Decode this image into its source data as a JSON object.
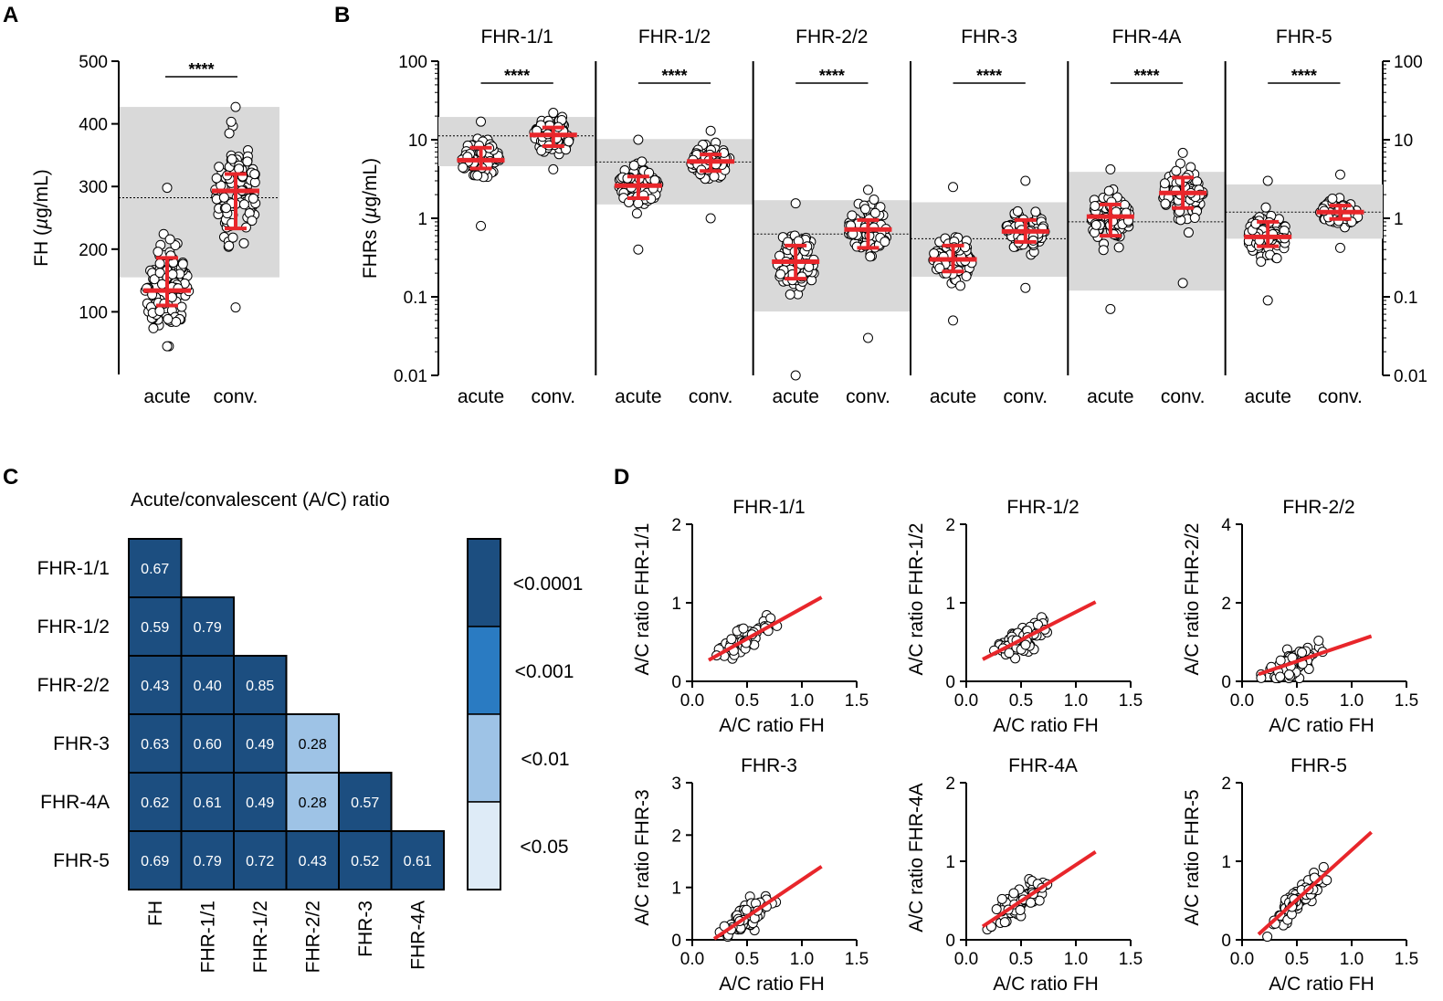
{
  "panel_letters": {
    "A": "A",
    "B": "B",
    "C": "C",
    "D": "D"
  },
  "colors": {
    "median": "#e8262b",
    "ref_band": "#d9d9d9",
    "heat_0001": "#1c4e80",
    "heat_001": "#2a7bc2",
    "heat_01": "#9ec3e6",
    "heat_05": "#deebf7"
  },
  "chart_data": [
    {
      "id": "A",
      "type": "scatter",
      "subtype": "dot-plot",
      "ylabel_prefix": "FH (",
      "ylabel_mu": "µ",
      "ylabel_suffix": "g/mL)",
      "ylim": [
        0,
        500
      ],
      "yticks": [
        100,
        200,
        300,
        400,
        500
      ],
      "ytick_labels": [
        "100",
        "200",
        "300",
        "400",
        "500"
      ],
      "categories": [
        "acute",
        "conv."
      ],
      "reference_range": [
        155,
        427
      ],
      "reference_median": 282,
      "significance": "****",
      "groups": [
        {
          "name": "acute",
          "median": 134,
          "q1": 110,
          "q3": 186,
          "min": 45,
          "max": 298,
          "n": 95
        },
        {
          "name": "conv.",
          "median": 293,
          "q1": 233,
          "q3": 320,
          "min": 107,
          "max": 427,
          "n": 95
        }
      ]
    },
    {
      "id": "B",
      "type": "scatter",
      "subtype": "dot-plot",
      "scale": "log",
      "ylabel_prefix": "FHRs (",
      "ylabel_mu": "µ",
      "ylabel_suffix": "g/mL)",
      "ylim": [
        0.01,
        100
      ],
      "yticks": [
        0.01,
        0.1,
        1,
        10,
        100
      ],
      "ytick_labels": [
        "0.01",
        "0.1",
        "1",
        "10",
        "100"
      ],
      "significance": "****",
      "panels": [
        {
          "title": "FHR-1/1",
          "reference_range": [
            4.6,
            19.5
          ],
          "reference_median": 11.2,
          "groups": [
            {
              "name": "acute",
              "median": 5.5,
              "q1": 4.3,
              "q3": 7.9,
              "min": 0.8,
              "max": 17
            },
            {
              "name": "conv.",
              "median": 11.5,
              "q1": 8.3,
              "q3": 14.3,
              "min": 4.2,
              "max": 22
            }
          ]
        },
        {
          "title": "FHR-1/2",
          "reference_range": [
            1.5,
            10.2
          ],
          "reference_median": 5.2,
          "groups": [
            {
              "name": "acute",
              "median": 2.6,
              "q1": 1.8,
              "q3": 3.4,
              "min": 0.4,
              "max": 10
            },
            {
              "name": "conv.",
              "median": 5.3,
              "q1": 4.0,
              "q3": 6.5,
              "min": 1.0,
              "max": 13
            }
          ]
        },
        {
          "title": "FHR-2/2",
          "reference_range": [
            0.065,
            1.7
          ],
          "reference_median": 0.63,
          "groups": [
            {
              "name": "acute",
              "median": 0.28,
              "q1": 0.17,
              "q3": 0.45,
              "min": 0.01,
              "max": 1.55
            },
            {
              "name": "conv.",
              "median": 0.72,
              "q1": 0.42,
              "q3": 0.95,
              "min": 0.03,
              "max": 2.3
            }
          ]
        },
        {
          "title": "FHR-3",
          "reference_range": [
            0.18,
            1.6
          ],
          "reference_median": 0.55,
          "groups": [
            {
              "name": "acute",
              "median": 0.3,
              "q1": 0.21,
              "q3": 0.45,
              "min": 0.05,
              "max": 2.5
            },
            {
              "name": "conv.",
              "median": 0.68,
              "q1": 0.5,
              "q3": 0.95,
              "min": 0.13,
              "max": 3.0
            }
          ]
        },
        {
          "title": "FHR-4A",
          "reference_range": [
            0.12,
            3.9
          ],
          "reference_median": 0.9,
          "groups": [
            {
              "name": "acute",
              "median": 1.05,
              "q1": 0.6,
              "q3": 1.5,
              "min": 0.07,
              "max": 4.2
            },
            {
              "name": "conv.",
              "median": 2.1,
              "q1": 1.35,
              "q3": 3.3,
              "min": 0.15,
              "max": 6.8
            }
          ]
        },
        {
          "title": "FHR-5",
          "reference_range": [
            0.55,
            2.7
          ],
          "reference_median": 1.2,
          "groups": [
            {
              "name": "acute",
              "median": 0.58,
              "q1": 0.44,
              "q3": 0.9,
              "min": 0.09,
              "max": 3.0
            },
            {
              "name": "conv.",
              "median": 1.2,
              "q1": 0.98,
              "q3": 1.45,
              "min": 0.42,
              "max": 3.6
            }
          ]
        }
      ],
      "categories": [
        "acute",
        "conv."
      ]
    },
    {
      "id": "C",
      "type": "heatmap",
      "title": "Acute/convalescent (A/C) ratio",
      "row_labels": [
        "FHR-1/1",
        "FHR-1/2",
        "FHR-2/2",
        "FHR-3",
        "FHR-4A",
        "FHR-5"
      ],
      "col_labels": [
        "FH",
        "FHR-1/1",
        "FHR-1/2",
        "FHR-2/2",
        "FHR-3",
        "FHR-4A"
      ],
      "values": [
        [
          "0.67"
        ],
        [
          "0.59",
          "0.79"
        ],
        [
          "0.43",
          "0.40",
          "0.85"
        ],
        [
          "0.63",
          "0.60",
          "0.49",
          "0.28"
        ],
        [
          "0.62",
          "0.61",
          "0.49",
          "0.28",
          "0.57"
        ],
        [
          "0.69",
          "0.79",
          "0.72",
          "0.43",
          "0.52",
          "0.61"
        ]
      ],
      "significance_level": [
        [
          0
        ],
        [
          0,
          0
        ],
        [
          0,
          0,
          0
        ],
        [
          0,
          0,
          0,
          2
        ],
        [
          0,
          0,
          0,
          2,
          0
        ],
        [
          0,
          0,
          0,
          0,
          0,
          0
        ]
      ],
      "legend": [
        "<0.0001",
        "<0.001",
        "<0.01",
        "<0.05"
      ]
    },
    {
      "id": "D",
      "type": "scatter",
      "xlabel": "A/C ratio FH",
      "xlim": [
        0,
        1.5
      ],
      "xticks": [
        "0.0",
        "0.5",
        "1.0",
        "1.5"
      ],
      "panels": [
        {
          "title": "FHR-1/1",
          "ylabel": "A/C ratio FHR-1/1",
          "ylim": [
            0,
            2
          ],
          "yticks": [
            "0",
            "1",
            "2"
          ],
          "fit": [
            [
              0.15,
              0.27
            ],
            [
              1.18,
              1.07
            ]
          ]
        },
        {
          "title": "FHR-1/2",
          "ylabel": "A/C ratio FHR-1/2",
          "ylim": [
            0,
            2
          ],
          "yticks": [
            "0",
            "1",
            "2"
          ],
          "fit": [
            [
              0.15,
              0.28
            ],
            [
              1.18,
              1.01
            ]
          ]
        },
        {
          "title": "FHR-2/2",
          "ylabel": "A/C ratio FHR-2/2",
          "ylim": [
            0,
            4
          ],
          "yticks": [
            "0",
            "2",
            "4"
          ],
          "fit": [
            [
              0.15,
              0.18
            ],
            [
              1.18,
              1.15
            ]
          ]
        },
        {
          "title": "FHR-3",
          "ylabel": "A/C ratio FHR-3",
          "ylim": [
            0,
            3
          ],
          "yticks": [
            "0",
            "1",
            "2",
            "3"
          ],
          "fit": [
            [
              0.2,
              0.02
            ],
            [
              1.18,
              1.4
            ]
          ]
        },
        {
          "title": "FHR-4A",
          "ylabel": "A/C ratio FHR-4A",
          "ylim": [
            0,
            2
          ],
          "yticks": [
            "0",
            "1",
            "2"
          ],
          "fit": [
            [
              0.15,
              0.17
            ],
            [
              1.18,
              1.12
            ]
          ]
        },
        {
          "title": "FHR-5",
          "ylabel": "A/C ratio FHR-5",
          "ylim": [
            0,
            2
          ],
          "yticks": [
            "0",
            "1",
            "2"
          ],
          "fit": [
            [
              0.15,
              0.07
            ],
            [
              1.18,
              1.37
            ]
          ]
        }
      ]
    }
  ]
}
